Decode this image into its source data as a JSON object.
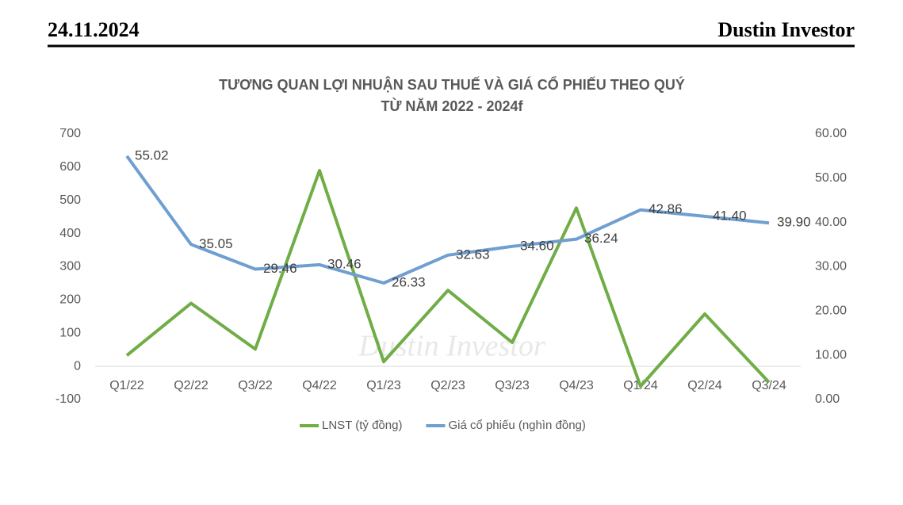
{
  "header": {
    "date": "24.11.2024",
    "brand": "Dustin Investor"
  },
  "chart_data": {
    "type": "line",
    "title": "TƯƠNG QUAN LỢI NHUẬN SAU THUẾ VÀ GIÁ CỔ PHIẾU THEO QUÝ",
    "subtitle": "TỪ NĂM 2022 - 2024f",
    "watermark": "Dustin Investor",
    "categories": [
      "Q1/22",
      "Q2/22",
      "Q3/22",
      "Q4/22",
      "Q1/23",
      "Q2/23",
      "Q3/23",
      "Q4/23",
      "Q1/24",
      "Q2/24",
      "Q3/24"
    ],
    "series": [
      {
        "name": "LNST (tỷ đồng)",
        "color": "#70ad47",
        "values": [
          33,
          190,
          52,
          590,
          14,
          229,
          72,
          477,
          -60,
          158,
          -48
        ]
      },
      {
        "name": "Giá cổ phiếu (nghìn đồng)",
        "color": "#6f9fd0",
        "axis": "y2",
        "values": [
          55.02,
          35.05,
          29.46,
          30.46,
          26.33,
          32.63,
          34.6,
          36.24,
          42.86,
          41.4,
          39.9
        ],
        "value_labels": [
          "55.02",
          "35.05",
          "29.46",
          "30.46",
          "26.33",
          "32.63",
          "34.60",
          "36.24",
          "42.86",
          "41.40",
          "39.90"
        ]
      }
    ],
    "ylim": [
      -100,
      700
    ],
    "yticks": [
      -100,
      0,
      100,
      200,
      300,
      400,
      500,
      600,
      700
    ],
    "y2lim": [
      0,
      60
    ],
    "y2ticks": [
      {
        "value": 0,
        "label": "0.00"
      },
      {
        "value": 10,
        "label": "10.00"
      },
      {
        "value": 20,
        "label": "20.00"
      },
      {
        "value": 30,
        "label": "30.00"
      },
      {
        "value": 40,
        "label": "40.00"
      },
      {
        "value": 50,
        "label": "50.00"
      },
      {
        "value": 60,
        "label": "60.00"
      }
    ],
    "legend": "bottom"
  }
}
